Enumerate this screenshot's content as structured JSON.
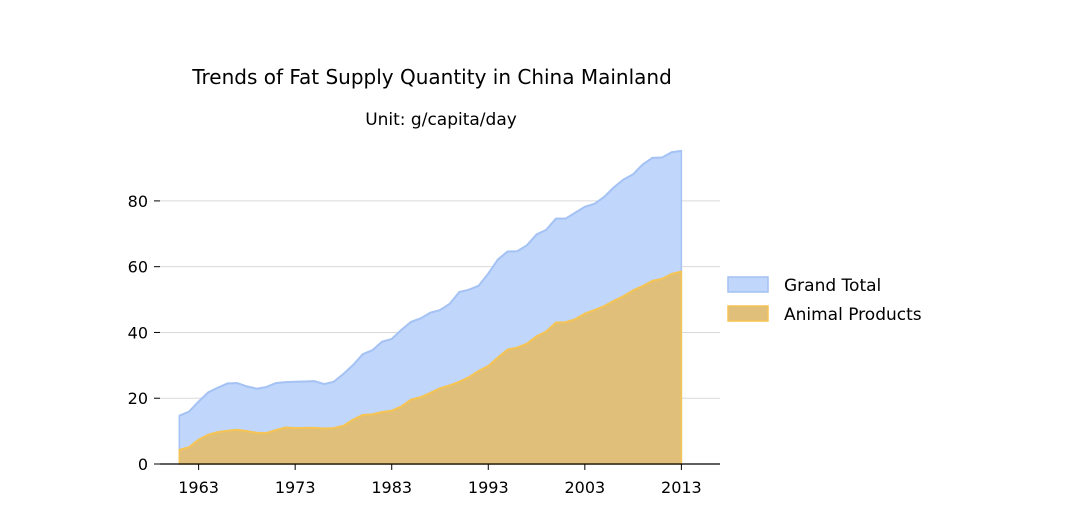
{
  "chart_data": {
    "type": "area",
    "title": "Trends of Fat Supply Quantity in China Mainland",
    "subtitle": "Unit: g/capita/day",
    "xlabel": "",
    "ylabel": "",
    "xlim": [
      1959,
      2017
    ],
    "ylim": [
      0,
      97
    ],
    "x_ticks": [
      1963,
      1973,
      1983,
      1993,
      2003,
      2013
    ],
    "y_ticks": [
      0,
      20,
      40,
      60,
      80
    ],
    "grid": "horizontal",
    "legend_position": "right",
    "x": [
      1961,
      1962,
      1963,
      1964,
      1965,
      1966,
      1967,
      1968,
      1969,
      1970,
      1971,
      1972,
      1973,
      1974,
      1975,
      1976,
      1977,
      1978,
      1979,
      1980,
      1981,
      1982,
      1983,
      1984,
      1985,
      1986,
      1987,
      1988,
      1989,
      1990,
      1991,
      1992,
      1993,
      1994,
      1995,
      1996,
      1997,
      1998,
      1999,
      2000,
      2001,
      2002,
      2003,
      2004,
      2005,
      2006,
      2007,
      2008,
      2009,
      2010,
      2011,
      2012,
      2013
    ],
    "series": [
      {
        "name": "Grand Total",
        "color": "#a4c2f4",
        "fill": "#c0d6fb",
        "values": [
          14.7,
          15.9,
          19.0,
          21.8,
          23.2,
          24.5,
          24.6,
          23.6,
          22.9,
          23.4,
          24.6,
          24.9,
          25.0,
          25.1,
          25.2,
          24.3,
          25.0,
          27.4,
          30.1,
          33.4,
          34.6,
          37.2,
          38.0,
          40.8,
          43.2,
          44.3,
          46.0,
          46.8,
          48.7,
          52.3,
          53.0,
          54.2,
          57.9,
          62.2,
          64.6,
          64.7,
          66.5,
          69.8,
          71.2,
          74.6,
          74.6,
          76.4,
          78.2,
          79.1,
          81.2,
          84.1,
          86.5,
          88.1,
          91.1,
          93.1,
          93.2,
          94.8,
          95.2
        ]
      },
      {
        "name": "Animal Products",
        "color": "#f5c454",
        "fill": "#dfbf79",
        "values": [
          4.3,
          5.1,
          7.4,
          8.9,
          9.7,
          10.1,
          10.4,
          10.0,
          9.5,
          9.4,
          10.3,
          11.1,
          10.9,
          11.0,
          11.0,
          10.8,
          10.9,
          11.6,
          13.5,
          14.9,
          15.1,
          15.8,
          16.2,
          17.5,
          19.6,
          20.3,
          21.6,
          23.0,
          23.9,
          25.0,
          26.4,
          28.3,
          29.8,
          32.4,
          34.8,
          35.4,
          36.6,
          38.8,
          40.3,
          43.0,
          43.1,
          44.0,
          45.7,
          46.8,
          48.0,
          49.6,
          51.0,
          52.8,
          54.1,
          55.7,
          56.3,
          57.8,
          58.5
        ]
      }
    ]
  }
}
